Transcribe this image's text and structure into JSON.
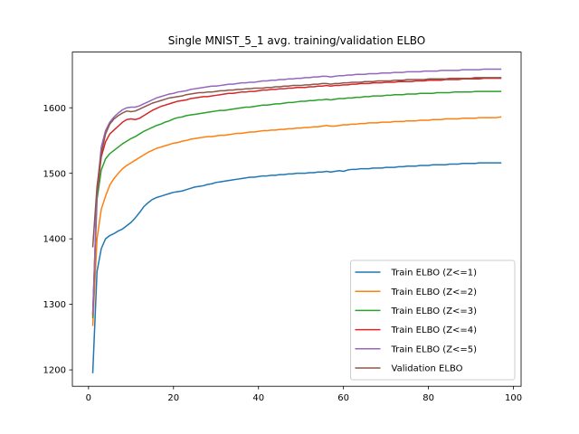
{
  "chart_data": {
    "type": "line",
    "title": "Single MNIST_5_1 avg. training/validation ELBO",
    "xlabel": "",
    "ylabel": "",
    "xlim": [
      -3.8,
      101.8
    ],
    "ylim": [
      1175,
      1685
    ],
    "xticks": [
      0,
      20,
      40,
      60,
      80,
      100
    ],
    "yticks": [
      1200,
      1300,
      1400,
      1500,
      1600
    ],
    "grid": false,
    "legend_position": "lower-right",
    "x": [
      1,
      2,
      3,
      4,
      5,
      6,
      7,
      8,
      9,
      10,
      11,
      12,
      13,
      14,
      15,
      16,
      17,
      18,
      19,
      20,
      21,
      22,
      23,
      24,
      25,
      26,
      27,
      28,
      29,
      30,
      31,
      32,
      33,
      34,
      35,
      36,
      37,
      38,
      39,
      40,
      41,
      42,
      43,
      44,
      45,
      46,
      47,
      48,
      49,
      50,
      51,
      52,
      53,
      54,
      55,
      56,
      57,
      58,
      59,
      60,
      61,
      62,
      63,
      64,
      65,
      66,
      67,
      68,
      69,
      70,
      71,
      72,
      73,
      74,
      75,
      76,
      77,
      78,
      79,
      80,
      81,
      82,
      83,
      84,
      85,
      86,
      87,
      88,
      89,
      90,
      91,
      92,
      93,
      94,
      95,
      96,
      97
    ],
    "series": [
      {
        "name": "Train ELBO (Z<=1)",
        "color": "#1f77b4",
        "values": [
          1196,
          1350,
          1385,
          1400,
          1405,
          1408,
          1412,
          1415,
          1420,
          1425,
          1432,
          1440,
          1449,
          1455,
          1460,
          1463,
          1465,
          1467,
          1469,
          1471,
          1472,
          1473,
          1475,
          1477,
          1479,
          1480,
          1481,
          1483,
          1484,
          1486,
          1487,
          1488,
          1489,
          1490,
          1491,
          1492,
          1493,
          1494,
          1494,
          1495,
          1496,
          1496,
          1497,
          1497,
          1498,
          1498,
          1499,
          1499,
          1500,
          1500,
          1500,
          1501,
          1501,
          1502,
          1502,
          1503,
          1502,
          1503,
          1504,
          1503,
          1505,
          1506,
          1506,
          1507,
          1507,
          1507,
          1508,
          1508,
          1508,
          1509,
          1509,
          1509,
          1510,
          1510,
          1511,
          1511,
          1511,
          1512,
          1512,
          1512,
          1513,
          1513,
          1513,
          1513,
          1514,
          1514,
          1514,
          1515,
          1515,
          1515,
          1515,
          1516,
          1516,
          1516,
          1516,
          1516,
          1516
        ]
      },
      {
        "name": "Train ELBO (Z<=2)",
        "color": "#ff7f0e",
        "values": [
          1268,
          1400,
          1445,
          1465,
          1482,
          1492,
          1500,
          1507,
          1512,
          1516,
          1520,
          1524,
          1528,
          1532,
          1535,
          1538,
          1540,
          1542,
          1544,
          1546,
          1547,
          1549,
          1550,
          1552,
          1553,
          1554,
          1555,
          1556,
          1556,
          1557,
          1558,
          1558,
          1559,
          1560,
          1561,
          1561,
          1562,
          1563,
          1563,
          1564,
          1565,
          1565,
          1566,
          1566,
          1567,
          1567,
          1568,
          1568,
          1569,
          1569,
          1570,
          1570,
          1571,
          1571,
          1572,
          1573,
          1572,
          1572,
          1573,
          1574,
          1574,
          1575,
          1575,
          1576,
          1576,
          1577,
          1577,
          1577,
          1578,
          1578,
          1578,
          1579,
          1579,
          1579,
          1580,
          1580,
          1580,
          1581,
          1581,
          1581,
          1582,
          1582,
          1582,
          1583,
          1583,
          1583,
          1583,
          1584,
          1584,
          1584,
          1584,
          1585,
          1585,
          1585,
          1585,
          1585,
          1586
        ]
      },
      {
        "name": "Train ELBO (Z<=3)",
        "color": "#2ca02c",
        "values": [
          1280,
          1460,
          1505,
          1522,
          1530,
          1535,
          1540,
          1545,
          1549,
          1553,
          1556,
          1560,
          1564,
          1567,
          1570,
          1573,
          1575,
          1578,
          1580,
          1583,
          1585,
          1586,
          1588,
          1589,
          1590,
          1591,
          1592,
          1593,
          1594,
          1595,
          1596,
          1596,
          1597,
          1598,
          1599,
          1600,
          1601,
          1601,
          1602,
          1603,
          1604,
          1604,
          1605,
          1606,
          1606,
          1607,
          1608,
          1608,
          1609,
          1610,
          1610,
          1611,
          1611,
          1612,
          1612,
          1613,
          1612,
          1613,
          1614,
          1614,
          1615,
          1615,
          1616,
          1616,
          1617,
          1617,
          1618,
          1618,
          1618,
          1619,
          1619,
          1620,
          1620,
          1620,
          1621,
          1621,
          1621,
          1622,
          1622,
          1622,
          1622,
          1623,
          1623,
          1623,
          1623,
          1624,
          1624,
          1624,
          1624,
          1624,
          1625,
          1625,
          1625,
          1625,
          1625,
          1625,
          1625
        ]
      },
      {
        "name": "Train ELBO (Z<=4)",
        "color": "#d62728",
        "values": [
          1285,
          1470,
          1525,
          1548,
          1560,
          1566,
          1572,
          1578,
          1582,
          1583,
          1582,
          1584,
          1588,
          1592,
          1596,
          1599,
          1602,
          1604,
          1606,
          1608,
          1610,
          1611,
          1612,
          1614,
          1615,
          1616,
          1617,
          1617,
          1618,
          1619,
          1620,
          1621,
          1622,
          1622,
          1623,
          1624,
          1624,
          1625,
          1625,
          1626,
          1627,
          1627,
          1628,
          1628,
          1629,
          1629,
          1630,
          1630,
          1631,
          1631,
          1631,
          1632,
          1632,
          1633,
          1633,
          1634,
          1633,
          1634,
          1634,
          1635,
          1635,
          1636,
          1636,
          1637,
          1637,
          1637,
          1638,
          1638,
          1638,
          1639,
          1639,
          1639,
          1640,
          1640,
          1640,
          1640,
          1641,
          1641,
          1641,
          1642,
          1642,
          1642,
          1642,
          1643,
          1643,
          1643,
          1643,
          1644,
          1644,
          1644,
          1644,
          1644,
          1645,
          1645,
          1645,
          1645,
          1645
        ]
      },
      {
        "name": "Train ELBO (Z<=5)",
        "color": "#9467bd",
        "values": [
          1285,
          1475,
          1540,
          1565,
          1578,
          1586,
          1592,
          1597,
          1600,
          1601,
          1601,
          1603,
          1606,
          1609,
          1612,
          1615,
          1617,
          1619,
          1621,
          1622,
          1624,
          1625,
          1626,
          1628,
          1629,
          1630,
          1631,
          1632,
          1633,
          1633,
          1634,
          1635,
          1636,
          1636,
          1637,
          1638,
          1638,
          1639,
          1639,
          1640,
          1641,
          1641,
          1642,
          1642,
          1643,
          1643,
          1644,
          1644,
          1645,
          1645,
          1646,
          1646,
          1647,
          1647,
          1648,
          1648,
          1647,
          1648,
          1649,
          1649,
          1650,
          1650,
          1651,
          1651,
          1651,
          1652,
          1652,
          1652,
          1653,
          1653,
          1653,
          1654,
          1654,
          1654,
          1655,
          1655,
          1655,
          1655,
          1656,
          1656,
          1656,
          1656,
          1657,
          1657,
          1657,
          1657,
          1657,
          1658,
          1658,
          1658,
          1658,
          1658,
          1659,
          1659,
          1659,
          1659,
          1659
        ]
      },
      {
        "name": "Validation ELBO",
        "color": "#8c564b",
        "values": [
          1388,
          1480,
          1530,
          1560,
          1575,
          1583,
          1588,
          1592,
          1595,
          1594,
          1595,
          1598,
          1601,
          1604,
          1607,
          1609,
          1611,
          1613,
          1615,
          1616,
          1617,
          1618,
          1620,
          1621,
          1622,
          1623,
          1623,
          1624,
          1624,
          1625,
          1626,
          1626,
          1627,
          1627,
          1628,
          1628,
          1629,
          1629,
          1630,
          1630,
          1630,
          1631,
          1631,
          1632,
          1632,
          1633,
          1633,
          1634,
          1634,
          1634,
          1635,
          1635,
          1636,
          1636,
          1637,
          1637,
          1636,
          1637,
          1637,
          1638,
          1638,
          1639,
          1639,
          1639,
          1640,
          1640,
          1640,
          1641,
          1641,
          1641,
          1641,
          1642,
          1642,
          1642,
          1643,
          1643,
          1643,
          1643,
          1643,
          1644,
          1644,
          1644,
          1644,
          1644,
          1645,
          1645,
          1645,
          1645,
          1645,
          1645,
          1646,
          1646,
          1646,
          1646,
          1646,
          1646,
          1646
        ]
      }
    ]
  }
}
